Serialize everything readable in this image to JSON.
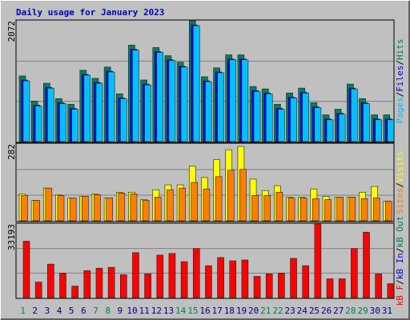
{
  "chart_data": [
    {
      "type": "bar",
      "title": "Daily usage for January 2023",
      "legend_separator": "/",
      "ylim": [
        0,
        2072
      ],
      "yticks": [
        2072
      ],
      "grid_divisions": 3,
      "series": [
        {
          "name": "Pages",
          "color": "#00C0FF",
          "values": [
            1041,
            610,
            916,
            652,
            555,
            1139,
            1000,
            1194,
            735,
            1570,
            972,
            1528,
            1389,
            1278,
            1987,
            1027,
            1180,
            1403,
            1403,
            861,
            819,
            555,
            749,
            833,
            582,
            374,
            471,
            902,
            652,
            374,
            374
          ]
        },
        {
          "name": "Files",
          "color": "#0000FF",
          "values": [
            1056,
            625,
            931,
            667,
            570,
            1154,
            1015,
            1209,
            750,
            1585,
            987,
            1543,
            1404,
            1293,
            2002,
            1042,
            1195,
            1418,
            1418,
            876,
            834,
            570,
            764,
            848,
            597,
            389,
            486,
            917,
            667,
            389,
            389
          ]
        },
        {
          "name": "Hits",
          "color": "#00805C",
          "values": [
            1126,
            695,
            1001,
            737,
            640,
            1224,
            1085,
            1279,
            820,
            1655,
            1057,
            1613,
            1474,
            1363,
            2072,
            1112,
            1265,
            1488,
            1488,
            946,
            904,
            640,
            834,
            918,
            667,
            459,
            556,
            987,
            737,
            459,
            459
          ]
        }
      ]
    },
    {
      "type": "bar",
      "ylim": [
        0,
        282
      ],
      "yticks": [
        282
      ],
      "grid_divisions": 3,
      "series": [
        {
          "name": "Sites",
          "color": "#FF8000",
          "values": [
            93,
            75,
            120,
            93,
            84,
            90,
            96,
            84,
            102,
            99,
            75,
            87,
            114,
            120,
            141,
            117,
            162,
            186,
            189,
            93,
            93,
            105,
            84,
            84,
            81,
            78,
            87,
            87,
            81,
            84,
            72
          ]
        },
        {
          "name": "Visits",
          "color": "#FFFF00",
          "values": [
            99,
            75,
            120,
            96,
            84,
            90,
            99,
            84,
            105,
            105,
            78,
            114,
            132,
            132,
            201,
            159,
            225,
            261,
            273,
            153,
            111,
            129,
            87,
            87,
            117,
            90,
            87,
            87,
            105,
            126,
            72
          ]
        }
      ]
    },
    {
      "type": "bar",
      "ylim": [
        0,
        33193
      ],
      "yticks": [
        33193
      ],
      "grid_divisions": 3,
      "categories": [
        "1",
        "2",
        "3",
        "4",
        "5",
        "6",
        "7",
        "8",
        "9",
        "10",
        "11",
        "12",
        "13",
        "14",
        "15",
        "16",
        "17",
        "18",
        "19",
        "20",
        "21",
        "22",
        "23",
        "24",
        "25",
        "26",
        "27",
        "28",
        "29",
        "30",
        "31"
      ],
      "weekend_indices": [
        0,
        6,
        7,
        13,
        14,
        20,
        21,
        27,
        28
      ],
      "weekend_color": "#00805C",
      "weekday_color": "#00008B",
      "series": [
        {
          "name": "kB F",
          "color": "#FF0000",
          "values": [
            25448,
            7007,
            15121,
            11064,
            5163,
            12171,
            13277,
            13645,
            10327,
            20285,
            10695,
            19178,
            19916,
            16227,
            22129,
            14384,
            18072,
            16596,
            16965,
            9589,
            10695,
            11064,
            17703,
            14384,
            33193,
            8483,
            8483,
            22129,
            29504,
            10695,
            6270
          ]
        },
        {
          "name": "kB In",
          "color": "#0000FF",
          "values": [
            null,
            null,
            null,
            null,
            null,
            null,
            null,
            null,
            null,
            null,
            null,
            null,
            null,
            null,
            null,
            null,
            null,
            null,
            null,
            null,
            null,
            null,
            null,
            null,
            null,
            null,
            null,
            null,
            null,
            null,
            null
          ]
        },
        {
          "name": "kB Out",
          "color": "#00805C",
          "values": [
            null,
            null,
            null,
            null,
            null,
            null,
            null,
            null,
            null,
            null,
            null,
            null,
            null,
            null,
            null,
            null,
            null,
            null,
            null,
            null,
            null,
            null,
            null,
            null,
            null,
            null,
            null,
            null,
            null,
            null,
            null
          ]
        }
      ]
    }
  ]
}
